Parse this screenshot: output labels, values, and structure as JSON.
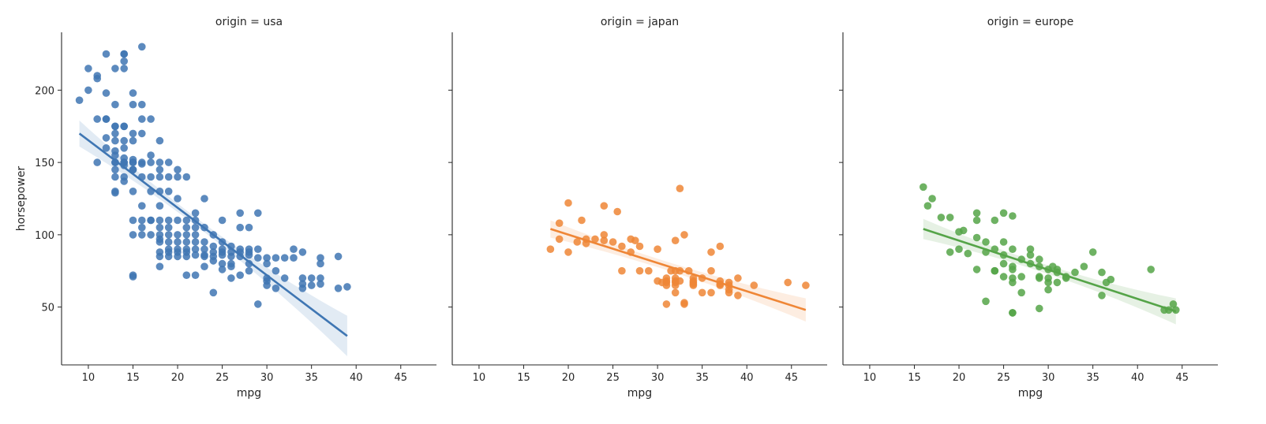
{
  "ylabel": "horsepower",
  "chart_data": [
    {
      "type": "scatter",
      "title": "origin = usa",
      "xlabel": "mpg",
      "ylabel": "horsepower",
      "xlim": [
        7.0,
        49.0
      ],
      "ylim": [
        10,
        240
      ],
      "xticks": [
        10,
        15,
        20,
        25,
        30,
        35,
        40,
        45
      ],
      "yticks": [
        50,
        100,
        150,
        200
      ],
      "color": "#3f76b3",
      "regression": {
        "x": [
          9,
          39
        ],
        "y": [
          170,
          30
        ],
        "ci_half_start": 9,
        "ci_half_mid": 3,
        "ci_half_end": 14
      },
      "points": [
        [
          9,
          193
        ],
        [
          10,
          200
        ],
        [
          10,
          215
        ],
        [
          11,
          210
        ],
        [
          11,
          208
        ],
        [
          11,
          180
        ],
        [
          11,
          150
        ],
        [
          12,
          225
        ],
        [
          12,
          198
        ],
        [
          12,
          180
        ],
        [
          12,
          180
        ],
        [
          12,
          167
        ],
        [
          12,
          160
        ],
        [
          13,
          215
        ],
        [
          13,
          190
        ],
        [
          13,
          175
        ],
        [
          13,
          175
        ],
        [
          13,
          170
        ],
        [
          13,
          165
        ],
        [
          13,
          158
        ],
        [
          13,
          155
        ],
        [
          13,
          150
        ],
        [
          13,
          150
        ],
        [
          13,
          145
        ],
        [
          13,
          140
        ],
        [
          13,
          130
        ],
        [
          13,
          129
        ],
        [
          14,
          225
        ],
        [
          14,
          225
        ],
        [
          14,
          220
        ],
        [
          14,
          215
        ],
        [
          14,
          175
        ],
        [
          14,
          175
        ],
        [
          14,
          165
        ],
        [
          14,
          160
        ],
        [
          14,
          153
        ],
        [
          14,
          150
        ],
        [
          14,
          150
        ],
        [
          14,
          148
        ],
        [
          14,
          140
        ],
        [
          14,
          137
        ],
        [
          15,
          198
        ],
        [
          15,
          190
        ],
        [
          15,
          170
        ],
        [
          15,
          165
        ],
        [
          15,
          152
        ],
        [
          15,
          150
        ],
        [
          15,
          150
        ],
        [
          15,
          145
        ],
        [
          15,
          145
        ],
        [
          15,
          130
        ],
        [
          15,
          110
        ],
        [
          15,
          100
        ],
        [
          15,
          72
        ],
        [
          15,
          71
        ],
        [
          16,
          230
        ],
        [
          16,
          190
        ],
        [
          16,
          180
        ],
        [
          16,
          170
        ],
        [
          16,
          150
        ],
        [
          16,
          149
        ],
        [
          16,
          140
        ],
        [
          16,
          120
        ],
        [
          16,
          110
        ],
        [
          16,
          105
        ],
        [
          16,
          100
        ],
        [
          17,
          180
        ],
        [
          17,
          155
        ],
        [
          17,
          150
        ],
        [
          17,
          140
        ],
        [
          17,
          130
        ],
        [
          17,
          110
        ],
        [
          17,
          110
        ],
        [
          17,
          100
        ],
        [
          18,
          165
        ],
        [
          18,
          150
        ],
        [
          18,
          145
        ],
        [
          18,
          140
        ],
        [
          18,
          130
        ],
        [
          18,
          120
        ],
        [
          18,
          110
        ],
        [
          18,
          105
        ],
        [
          18,
          100
        ],
        [
          18,
          97
        ],
        [
          18,
          95
        ],
        [
          18,
          88
        ],
        [
          18,
          85
        ],
        [
          18,
          78
        ],
        [
          19,
          150
        ],
        [
          19,
          140
        ],
        [
          19,
          130
        ],
        [
          19,
          110
        ],
        [
          19,
          105
        ],
        [
          19,
          100
        ],
        [
          19,
          95
        ],
        [
          19,
          90
        ],
        [
          19,
          88
        ],
        [
          19,
          85
        ],
        [
          20,
          145
        ],
        [
          20,
          140
        ],
        [
          20,
          125
        ],
        [
          20,
          110
        ],
        [
          20,
          100
        ],
        [
          20,
          95
        ],
        [
          20,
          90
        ],
        [
          20,
          88
        ],
        [
          20,
          85
        ],
        [
          21,
          140
        ],
        [
          21,
          110
        ],
        [
          21,
          105
        ],
        [
          21,
          100
        ],
        [
          21,
          95
        ],
        [
          21,
          90
        ],
        [
          21,
          88
        ],
        [
          21,
          85
        ],
        [
          21,
          72
        ],
        [
          22,
          115
        ],
        [
          22,
          110
        ],
        [
          22,
          105
        ],
        [
          22,
          100
        ],
        [
          22,
          95
        ],
        [
          22,
          90
        ],
        [
          22,
          86
        ],
        [
          22,
          72
        ],
        [
          23,
          125
        ],
        [
          23,
          105
        ],
        [
          23,
          95
        ],
        [
          23,
          90
        ],
        [
          23,
          86
        ],
        [
          23,
          85
        ],
        [
          23,
          78
        ],
        [
          24,
          100
        ],
        [
          24,
          92
        ],
        [
          24,
          88
        ],
        [
          24,
          85
        ],
        [
          24,
          82
        ],
        [
          24,
          60
        ],
        [
          25,
          110
        ],
        [
          25,
          95
        ],
        [
          25,
          90
        ],
        [
          25,
          88
        ],
        [
          25,
          86
        ],
        [
          25,
          80
        ],
        [
          25,
          76
        ],
        [
          26,
          92
        ],
        [
          26,
          88
        ],
        [
          26,
          85
        ],
        [
          26,
          80
        ],
        [
          26,
          78
        ],
        [
          26,
          70
        ],
        [
          27,
          115
        ],
        [
          27,
          105
        ],
        [
          27,
          90
        ],
        [
          27,
          88
        ],
        [
          27,
          85
        ],
        [
          27,
          72
        ],
        [
          28,
          105
        ],
        [
          28,
          90
        ],
        [
          28,
          88
        ],
        [
          28,
          86
        ],
        [
          28,
          80
        ],
        [
          28,
          75
        ],
        [
          29,
          115
        ],
        [
          29,
          90
        ],
        [
          29,
          84
        ],
        [
          29,
          52
        ],
        [
          30,
          84
        ],
        [
          30,
          80
        ],
        [
          30,
          70
        ],
        [
          30,
          68
        ],
        [
          30,
          65
        ],
        [
          31,
          84
        ],
        [
          31,
          75
        ],
        [
          31,
          63
        ],
        [
          32,
          84
        ],
        [
          32,
          70
        ],
        [
          33,
          90
        ],
        [
          33,
          84
        ],
        [
          34,
          88
        ],
        [
          34,
          70
        ],
        [
          34,
          66
        ],
        [
          34,
          63
        ],
        [
          35,
          70
        ],
        [
          35,
          65
        ],
        [
          36,
          80
        ],
        [
          36,
          84
        ],
        [
          36,
          70
        ],
        [
          36,
          66
        ],
        [
          38,
          85
        ],
        [
          38,
          63
        ],
        [
          39,
          64
        ]
      ]
    },
    {
      "type": "scatter",
      "title": "origin = japan",
      "xlabel": "mpg",
      "ylabel": "",
      "xlim": [
        7.0,
        49.0
      ],
      "ylim": [
        10,
        240
      ],
      "xticks": [
        10,
        15,
        20,
        25,
        30,
        35,
        40,
        45
      ],
      "yticks": [
        50,
        100,
        150,
        200
      ],
      "color": "#ef8636",
      "regression": {
        "x": [
          18,
          46.6
        ],
        "y": [
          104,
          48
        ],
        "ci_half_start": 6,
        "ci_half_mid": 3,
        "ci_half_end": 8
      },
      "points": [
        [
          18,
          90
        ],
        [
          19,
          108
        ],
        [
          19,
          97
        ],
        [
          20,
          122
        ],
        [
          20,
          88
        ],
        [
          21,
          95
        ],
        [
          21.5,
          110
        ],
        [
          22,
          97
        ],
        [
          22,
          94
        ],
        [
          23,
          97
        ],
        [
          24,
          100
        ],
        [
          24,
          96
        ],
        [
          24,
          120
        ],
        [
          25,
          95
        ],
        [
          25.5,
          116
        ],
        [
          26,
          92
        ],
        [
          26,
          75
        ],
        [
          27,
          97
        ],
        [
          27,
          88
        ],
        [
          27.5,
          96
        ],
        [
          28,
          92
        ],
        [
          28,
          75
        ],
        [
          29,
          75
        ],
        [
          30,
          90
        ],
        [
          30,
          68
        ],
        [
          30.5,
          67
        ],
        [
          31,
          70
        ],
        [
          31,
          68
        ],
        [
          31,
          67
        ],
        [
          31,
          65
        ],
        [
          31,
          52
        ],
        [
          31.5,
          75
        ],
        [
          32,
          96
        ],
        [
          32,
          75
        ],
        [
          32,
          70
        ],
        [
          32,
          68
        ],
        [
          32,
          67
        ],
        [
          32,
          65
        ],
        [
          32,
          60
        ],
        [
          32.5,
          132
        ],
        [
          32.5,
          75
        ],
        [
          32.5,
          68
        ],
        [
          33,
          100
        ],
        [
          33,
          52
        ],
        [
          33,
          53
        ],
        [
          33.5,
          75
        ],
        [
          34,
          70
        ],
        [
          34,
          68
        ],
        [
          34,
          67
        ],
        [
          34,
          66
        ],
        [
          34,
          65
        ],
        [
          35,
          70
        ],
        [
          35,
          60
        ],
        [
          36,
          88
        ],
        [
          36,
          75
        ],
        [
          36,
          60
        ],
        [
          37,
          92
        ],
        [
          37,
          68
        ],
        [
          37,
          66
        ],
        [
          37,
          65
        ],
        [
          38,
          67
        ],
        [
          38,
          65
        ],
        [
          38,
          62
        ],
        [
          38,
          60
        ],
        [
          39,
          70
        ],
        [
          39,
          58
        ],
        [
          40.8,
          65
        ],
        [
          44.6,
          67
        ],
        [
          46.6,
          65
        ]
      ]
    },
    {
      "type": "scatter",
      "title": "origin = europe",
      "xlabel": "mpg",
      "ylabel": "",
      "xlim": [
        7.0,
        49.0
      ],
      "ylim": [
        10,
        240
      ],
      "xticks": [
        10,
        15,
        20,
        25,
        30,
        35,
        40,
        45
      ],
      "yticks": [
        50,
        100,
        150,
        200
      ],
      "color": "#55a448",
      "regression": {
        "x": [
          16,
          44.3
        ],
        "y": [
          104,
          47
        ],
        "ci_half_start": 7,
        "ci_half_mid": 3,
        "ci_half_end": 9
      },
      "points": [
        [
          16,
          133
        ],
        [
          16.5,
          120
        ],
        [
          17,
          125
        ],
        [
          18,
          112
        ],
        [
          19,
          112
        ],
        [
          19,
          88
        ],
        [
          20,
          102
        ],
        [
          20,
          90
        ],
        [
          20.5,
          103
        ],
        [
          21,
          87
        ],
        [
          22,
          115
        ],
        [
          22,
          110
        ],
        [
          22,
          98
        ],
        [
          22,
          76
        ],
        [
          23,
          95
        ],
        [
          23,
          88
        ],
        [
          23,
          54
        ],
        [
          24,
          110
        ],
        [
          24,
          90
        ],
        [
          24,
          75
        ],
        [
          24,
          75
        ],
        [
          25,
          115
        ],
        [
          25,
          95
        ],
        [
          25,
          86
        ],
        [
          25,
          80
        ],
        [
          25,
          71
        ],
        [
          26,
          113
        ],
        [
          26,
          90
        ],
        [
          26,
          78
        ],
        [
          26,
          76
        ],
        [
          26,
          70
        ],
        [
          26,
          67
        ],
        [
          26,
          46
        ],
        [
          26,
          46
        ],
        [
          27,
          83
        ],
        [
          27,
          71
        ],
        [
          27,
          60
        ],
        [
          28,
          90
        ],
        [
          28,
          86
        ],
        [
          28,
          80
        ],
        [
          29,
          83
        ],
        [
          29,
          78
        ],
        [
          29,
          71
        ],
        [
          29,
          70
        ],
        [
          29,
          49
        ],
        [
          30,
          76
        ],
        [
          30,
          70
        ],
        [
          30,
          67
        ],
        [
          30,
          62
        ],
        [
          30.5,
          78
        ],
        [
          31,
          76
        ],
        [
          31,
          74
        ],
        [
          31,
          67
        ],
        [
          32,
          71
        ],
        [
          32,
          70
        ],
        [
          33,
          74
        ],
        [
          34,
          78
        ],
        [
          35,
          88
        ],
        [
          36,
          74
        ],
        [
          36,
          58
        ],
        [
          36.5,
          67
        ],
        [
          37,
          69
        ],
        [
          41.5,
          76
        ],
        [
          43,
          48
        ],
        [
          43.5,
          48
        ],
        [
          44,
          52
        ],
        [
          44.3,
          48
        ]
      ]
    }
  ]
}
